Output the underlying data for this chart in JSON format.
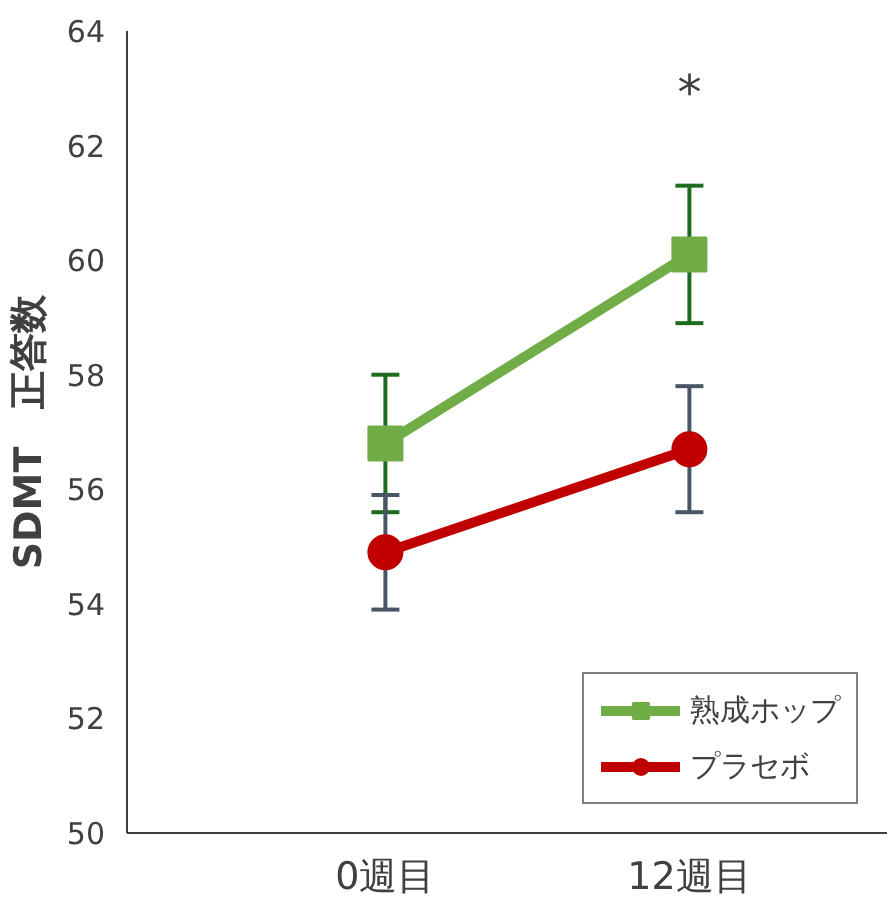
{
  "chart_data": {
    "type": "line",
    "ylabel": "SDMT　正答数",
    "categories": [
      "0週目",
      "12週目"
    ],
    "series": [
      {
        "name": "熟成ホップ",
        "color": "#70ad47",
        "values": [
          56.8,
          60.1
        ],
        "errors": [
          1.2,
          1.2
        ],
        "marker": "square"
      },
      {
        "name": "プラセボ",
        "color": "#c00000",
        "values": [
          54.9,
          56.7
        ],
        "errors": [
          1.0,
          1.1
        ],
        "marker": "circle"
      }
    ],
    "ylim": [
      50,
      64
    ],
    "yticks": [
      50,
      52,
      54,
      56,
      58,
      60,
      62,
      64
    ],
    "grid": false,
    "legend": "bottom right",
    "annotations": [
      "*"
    ]
  }
}
